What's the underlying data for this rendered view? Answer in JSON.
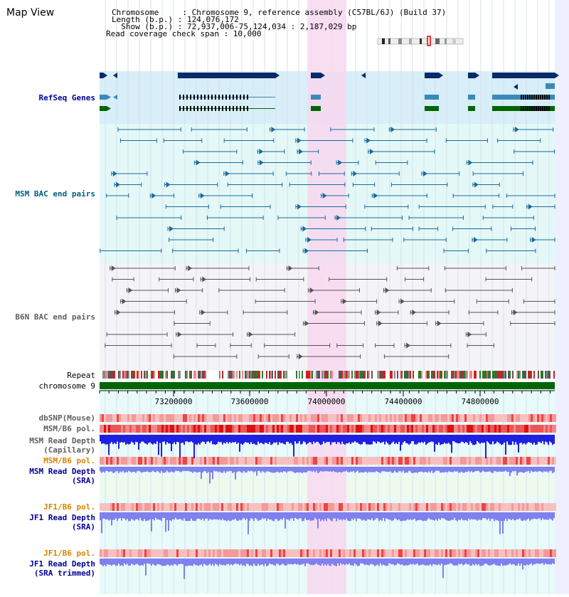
{
  "app": {
    "title": "Map View"
  },
  "info": {
    "lines": [
      "Chromosome     : Chromosome 9, reference assembly (C57BL/6J) (Build 37)",
      "Length (b.p.) : 124,076,172",
      "  Show (b.p.) : 72,937,006-75,124,034 : 2,187,029 bp",
      "Read coverage check span : 10,000"
    ]
  },
  "tracks": {
    "refseq": "RefSeq Genes",
    "msm_bac": "MSM BAC end pairs",
    "b6n_bac": "B6N BAC end pairs",
    "repeat": "Repeat",
    "chrom": "chromosome 9",
    "dbsnp": "dbSNP(Mouse)",
    "msm_b6_pol": "MSM/B6 pol.",
    "msm_depth_cap": "MSM Read Depth\n(Capillary)",
    "msm_b6_pol2": "MSM/B6 pol.",
    "msm_depth_sra": "MSM Read Depth\n(SRA)",
    "jf1_b6_pol": "JF1/B6 pol.",
    "jf1_depth_sra": "JF1 Read Depth\n(SRA)",
    "jf1_b6_pol2": "JF1/B6 pol.",
    "jf1_depth_trim": "JF1 Read Depth\n(SRA trimmed)"
  },
  "axis": {
    "ticks": [
      "73200000",
      "73600000",
      "74000000",
      "74400000",
      "74800000"
    ]
  },
  "colors": {
    "highlight": "#f8d8f0",
    "refseq_bg": "#d8eef8",
    "gene_dark": "#0a2a6a",
    "gene_mid": "#3a8ab8",
    "gene_green": "#006600",
    "msm_bg": "#e4f8f8",
    "msm_line": "#1a6a9a",
    "b6n_bg": "#f4f4f8",
    "b6n_line": "#555555",
    "chrom_bar": "#006600",
    "depth_blue": "#2020e0",
    "depth_light": "#8080ee",
    "label_blue": "#000099",
    "label_teal": "#006080",
    "label_gray": "#606060",
    "label_orange": "#e08000"
  }
}
